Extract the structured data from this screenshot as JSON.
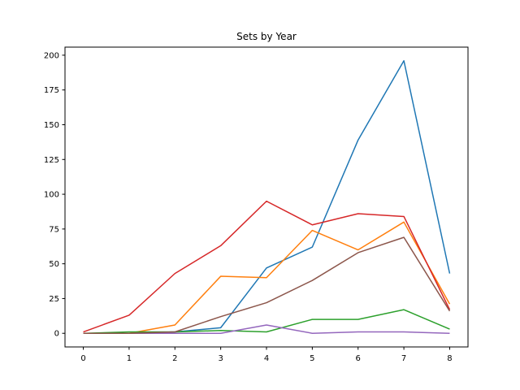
{
  "chart_data": {
    "type": "line",
    "title": "Sets by Year",
    "xlabel": "",
    "ylabel": "",
    "x": [
      0,
      1,
      2,
      3,
      4,
      5,
      6,
      7,
      8
    ],
    "xlim": [
      -0.4,
      8.4
    ],
    "ylim": [
      -9.8,
      205.8
    ],
    "xticks": [
      0,
      1,
      2,
      3,
      4,
      5,
      6,
      7,
      8
    ],
    "yticks": [
      0,
      25,
      50,
      75,
      100,
      125,
      150,
      175,
      200
    ],
    "grid": false,
    "legend": "none",
    "series": [
      {
        "color": "#1f77b4",
        "values": [
          0,
          0,
          1,
          4,
          47,
          62,
          139,
          196,
          43
        ]
      },
      {
        "color": "#ff7f0e",
        "values": [
          0,
          0,
          6,
          41,
          40,
          74,
          60,
          80,
          21
        ]
      },
      {
        "color": "#2ca02c",
        "values": [
          0,
          1,
          1,
          2,
          1,
          10,
          10,
          17,
          3
        ]
      },
      {
        "color": "#d62728",
        "values": [
          1,
          13,
          43,
          63,
          95,
          78,
          86,
          84,
          17
        ]
      },
      {
        "color": "#9467bd",
        "values": [
          0,
          0,
          0,
          0,
          6,
          0,
          1,
          1,
          0
        ]
      },
      {
        "color": "#8c564b",
        "values": [
          0,
          0,
          1,
          12,
          22,
          38,
          58,
          69,
          16
        ]
      }
    ]
  }
}
